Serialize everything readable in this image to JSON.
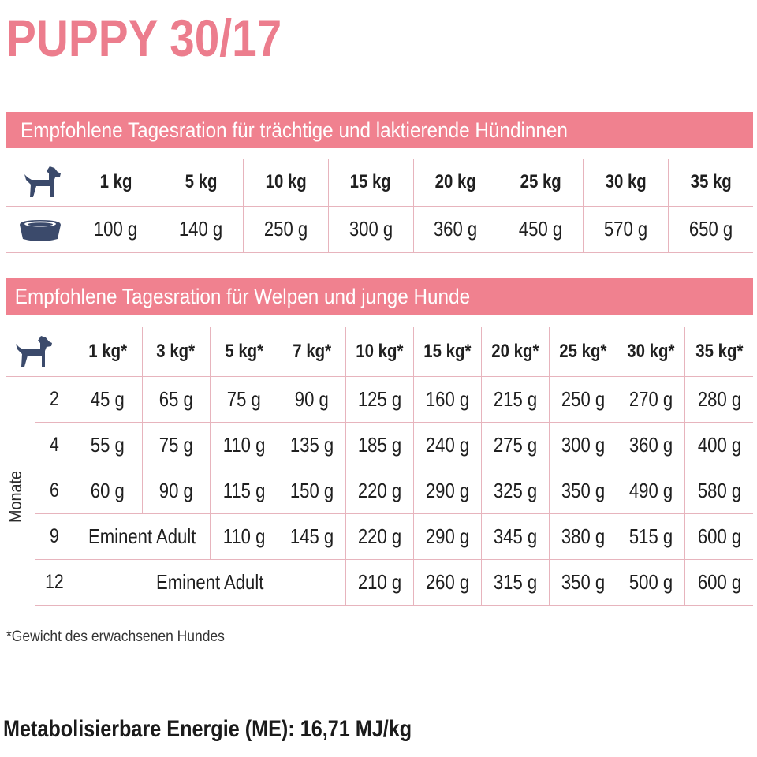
{
  "title": "PUPPY 30/17",
  "section1": {
    "heading": "Empfohlene Tagesration für trächtige und laktierende Hündinnen",
    "weights": [
      "1 kg",
      "5 kg",
      "10 kg",
      "15 kg",
      "20 kg",
      "25 kg",
      "30 kg",
      "35 kg"
    ],
    "amounts": [
      "100 g",
      "140 g",
      "250 g",
      "300 g",
      "360 g",
      "450 g",
      "570 g",
      "650 g"
    ]
  },
  "section2": {
    "heading": "Empfohlene Tagesration für Welpen und junge Hunde",
    "weights": [
      "1 kg*",
      "3 kg*",
      "5 kg*",
      "7 kg*",
      "10 kg*",
      "15 kg*",
      "20 kg*",
      "25 kg*",
      "30 kg*",
      "35 kg*"
    ],
    "age_label": "Monate",
    "rows": [
      {
        "age": "2",
        "values": [
          "45 g",
          "65 g",
          "75 g",
          "90 g",
          "125 g",
          "160 g",
          "215 g",
          "250 g",
          "270 g",
          "280 g"
        ]
      },
      {
        "age": "4",
        "values": [
          "55 g",
          "75 g",
          "110 g",
          "135 g",
          "185 g",
          "240 g",
          "275 g",
          "300 g",
          "360 g",
          "400 g"
        ]
      },
      {
        "age": "6",
        "values": [
          "60 g",
          "90 g",
          "115 g",
          "150 g",
          "220 g",
          "290 g",
          "325 g",
          "350 g",
          "490 g",
          "580 g"
        ]
      },
      {
        "age": "9",
        "merged": "Eminent Adult",
        "values": [
          "110 g",
          "145 g",
          "220 g",
          "290 g",
          "345 g",
          "380 g",
          "515 g",
          "600 g"
        ]
      },
      {
        "age": "12",
        "merged": "Eminent Adult",
        "values": [
          "210 g",
          "260 g",
          "315 g",
          "350 g",
          "500 g",
          "600 g"
        ]
      }
    ]
  },
  "footnote": "*Gewicht des erwachsenen Hundes",
  "energy": "Metabolisierbare Energie (ME): 16,71 MJ/kg",
  "icons": {
    "dog": "dog-icon",
    "bowl": "food-bowl-icon"
  },
  "colors": {
    "accent": "#ec7d8d",
    "band": "#f0818f",
    "rule": "#e7b4bd",
    "icon": "#3b4a6b"
  }
}
